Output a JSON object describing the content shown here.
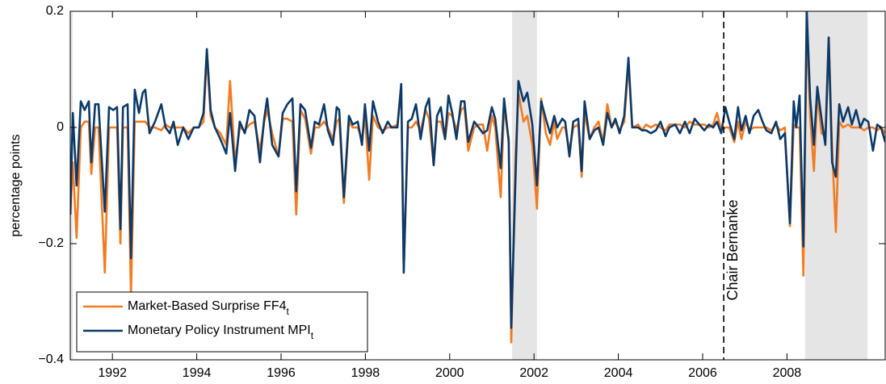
{
  "chart_data": {
    "type": "line",
    "y_label": "percentage points",
    "xlim": [
      1991.0,
      2010.33
    ],
    "ylim": [
      -0.4,
      0.2
    ],
    "xticks": [
      1992,
      1994,
      1996,
      1998,
      2000,
      2002,
      2004,
      2006,
      2008
    ],
    "yticks": [
      {
        "value": -0.4,
        "label": "−0.4"
      },
      {
        "value": -0.2,
        "label": "−0.2"
      },
      0,
      0.2
    ],
    "grid": false,
    "legend": "lower left",
    "shaded_periods": [
      [
        1991.0,
        1991.06
      ],
      [
        2001.48,
        2002.07
      ],
      [
        2008.43,
        2009.91
      ]
    ],
    "shade_color": "#e5e5e5",
    "vline": {
      "x": 2006.5,
      "label": "Chair Bernanke"
    },
    "x": [
      1991.0,
      1991.06,
      1991.15,
      1991.25,
      1991.34,
      1991.44,
      1991.5,
      1991.59,
      1991.67,
      1991.82,
      1991.92,
      1992.02,
      1992.11,
      1992.19,
      1992.25,
      1992.36,
      1992.44,
      1992.53,
      1992.63,
      1992.72,
      1992.78,
      1992.88,
      1993.01,
      1993.16,
      1993.26,
      1993.36,
      1993.45,
      1993.55,
      1993.68,
      1993.8,
      1993.93,
      1994.05,
      1994.16,
      1994.24,
      1994.33,
      1994.43,
      1994.56,
      1994.7,
      1994.79,
      1994.91,
      1995.02,
      1995.14,
      1995.25,
      1995.37,
      1995.5,
      1995.6,
      1995.67,
      1995.79,
      1995.94,
      1996.04,
      1996.15,
      1996.27,
      1996.36,
      1996.46,
      1996.57,
      1996.71,
      1996.8,
      1996.9,
      1997.02,
      1997.11,
      1997.23,
      1997.32,
      1997.38,
      1997.49,
      1997.61,
      1997.7,
      1997.82,
      1997.92,
      1997.99,
      1998.09,
      1998.18,
      1998.3,
      1998.41,
      1998.53,
      1998.62,
      1998.76,
      1998.85,
      1998.91,
      1999.01,
      1999.1,
      1999.2,
      1999.31,
      1999.43,
      1999.51,
      1999.62,
      1999.7,
      1999.79,
      1999.89,
      1999.97,
      2000.06,
      2000.16,
      2000.27,
      2000.35,
      2000.44,
      2000.58,
      2000.69,
      2000.79,
      2000.89,
      2001.0,
      2001.08,
      2001.21,
      2001.29,
      2001.4,
      2001.46,
      2001.56,
      2001.63,
      2001.75,
      2001.84,
      2001.96,
      2002.07,
      2002.17,
      2002.28,
      2002.38,
      2002.48,
      2002.55,
      2002.67,
      2002.74,
      2002.84,
      2002.93,
      2003.05,
      2003.13,
      2003.2,
      2003.32,
      2003.43,
      2003.53,
      2003.64,
      2003.74,
      2003.84,
      2003.93,
      2004.03,
      2004.14,
      2004.24,
      2004.33,
      2004.47,
      2004.56,
      2004.66,
      2004.77,
      2004.89,
      2005.0,
      2005.12,
      2005.21,
      2005.35,
      2005.46,
      2005.58,
      2005.69,
      2005.81,
      2005.92,
      2006.04,
      2006.15,
      2006.25,
      2006.34,
      2006.44,
      2006.54,
      2006.63,
      2006.75,
      2006.84,
      2006.92,
      2007.02,
      2007.11,
      2007.21,
      2007.32,
      2007.42,
      2007.51,
      2007.63,
      2007.74,
      2007.84,
      2007.95,
      2008.07,
      2008.16,
      2008.22,
      2008.3,
      2008.39,
      2008.47,
      2008.55,
      2008.64,
      2008.72,
      2008.82,
      2008.91,
      2008.99,
      2009.07,
      2009.16,
      2009.24,
      2009.33,
      2009.45,
      2009.54,
      2009.64,
      2009.74,
      2009.83,
      2009.93,
      2010.04,
      2010.14,
      2010.23,
      2010.33
    ],
    "series": [
      {
        "name": "Market-Based Surprise FF4",
        "subscript": "t",
        "color": "#f47b20",
        "values": [
          -0.15,
          -0.06,
          -0.19,
          0,
          0.01,
          0.01,
          -0.08,
          0,
          0,
          -0.25,
          0,
          0,
          0,
          -0.2,
          0,
          0,
          -0.29,
          0.01,
          0.01,
          0.01,
          0.01,
          0,
          0,
          -0.005,
          0.005,
          0,
          0,
          0,
          0,
          -0.01,
          0,
          0,
          0.01,
          0.125,
          0.02,
          0,
          -0.01,
          -0.03,
          0.08,
          -0.06,
          0,
          -0.005,
          0.005,
          0.01,
          -0.04,
          0.01,
          0.03,
          -0.01,
          -0.05,
          0.015,
          0.015,
          0.01,
          -0.15,
          0.03,
          0.015,
          -0.045,
          0,
          0,
          0.01,
          0,
          -0.02,
          0.01,
          0.015,
          -0.13,
          0.01,
          0,
          0,
          -0.02,
          0.02,
          -0.09,
          0.02,
          0,
          -0.005,
          0,
          0,
          0.005,
          0.07,
          -0.245,
          0,
          0,
          0.01,
          -0.005,
          0.03,
          0.015,
          -0.065,
          0.01,
          0.01,
          -0.02,
          0.025,
          0.02,
          -0.005,
          0.03,
          0.035,
          -0.04,
          0,
          0.005,
          0.005,
          -0.04,
          0.02,
          0,
          -0.12,
          0.035,
          -0.02,
          -0.37,
          -0.05,
          0.06,
          0.01,
          0.02,
          -0.03,
          -0.14,
          0.05,
          -0.01,
          -0.03,
          0.01,
          -0.02,
          0,
          0,
          -0.04,
          0,
          0.005,
          -0.085,
          0.025,
          -0.02,
          0,
          0.01,
          -0.025,
          0.04,
          0,
          0.01,
          -0.005,
          0.01,
          0.11,
          0,
          0.005,
          -0.005,
          0.005,
          0,
          0.005,
          0,
          -0.005,
          0.005,
          0.005,
          0.005,
          0,
          0.01,
          0.005,
          0.005,
          0.005,
          0,
          0.005,
          0.025,
          -0.005,
          0,
          0,
          -0.025,
          0.01,
          -0.02,
          0.01,
          -0.005,
          0,
          0,
          0,
          0,
          -0.005,
          0.005,
          -0.005,
          0,
          -0.17,
          0.005,
          0,
          0,
          -0.255,
          0.18,
          0.02,
          -0.075,
          0.06,
          -0.01,
          -0.015,
          0.155,
          -0.035,
          -0.18,
          0.01,
          0,
          0.005,
          0,
          0,
          0,
          -0.005,
          0,
          0,
          -0.005,
          0,
          -0.01
        ]
      },
      {
        "name": "Monetary Policy Instrument MPI",
        "subscript": "t",
        "color": "#0b3a6a",
        "values": [
          -0.15,
          0.025,
          -0.1,
          0.045,
          0.03,
          0.045,
          -0.06,
          0.04,
          0.04,
          -0.145,
          0.035,
          0.03,
          0.035,
          -0.175,
          0.035,
          0.04,
          -0.225,
          0.065,
          0.025,
          0.06,
          0.065,
          -0.01,
          0.01,
          0.04,
          0,
          -0.01,
          0.01,
          -0.03,
          0,
          -0.02,
          0,
          0,
          0.025,
          0.135,
          0.03,
          0,
          -0.02,
          -0.045,
          0.025,
          -0.075,
          0.01,
          -0.01,
          0.03,
          0.02,
          -0.06,
          0.015,
          0.05,
          -0.03,
          -0.05,
          0.025,
          0.04,
          0.05,
          -0.11,
          0.04,
          0.03,
          -0.035,
          0.01,
          0.005,
          0.04,
          -0.005,
          -0.03,
          0.035,
          0.03,
          -0.12,
          0.02,
          0.005,
          0.01,
          -0.03,
          0.04,
          -0.04,
          0.045,
          0.01,
          -0.01,
          0.01,
          0,
          0,
          0.075,
          -0.25,
          0.01,
          0.015,
          0.04,
          -0.02,
          0.035,
          0.05,
          -0.065,
          0.02,
          0.035,
          -0.02,
          0.055,
          0.025,
          -0.02,
          0.045,
          0.045,
          -0.025,
          0.01,
          0,
          -0.01,
          -0.005,
          0.035,
          0.015,
          -0.07,
          0.05,
          -0.025,
          -0.345,
          -0.09,
          0.08,
          0.045,
          0.06,
          0.005,
          -0.1,
          0.045,
          0.015,
          -0.01,
          0.02,
          0,
          0.015,
          0.01,
          -0.05,
          0.01,
          0.015,
          -0.075,
          0.045,
          -0.02,
          -0.005,
          0,
          -0.03,
          0.025,
          0,
          0.015,
          -0.01,
          0.02,
          0.12,
          0,
          0,
          -0.005,
          -0.005,
          -0.01,
          -0.005,
          0.01,
          -0.015,
          0,
          0.005,
          -0.01,
          0.01,
          -0.01,
          0.015,
          0.005,
          -0.005,
          0.005,
          0,
          0.01,
          -0.01,
          0.035,
          0.01,
          -0.02,
          0.035,
          -0.005,
          0.02,
          -0.01,
          0.02,
          0.03,
          0.01,
          -0.005,
          -0.01,
          0.01,
          -0.02,
          -0.01,
          -0.165,
          0.045,
          0,
          0.055,
          -0.205,
          0.2,
          0.05,
          -0.03,
          0.07,
          0.015,
          -0.03,
          0.155,
          -0.06,
          -0.085,
          0.04,
          0.01,
          0.035,
          0.005,
          0.03,
          0,
          0.015,
          0.01,
          -0.04,
          0.005,
          0,
          -0.025
        ]
      }
    ]
  }
}
